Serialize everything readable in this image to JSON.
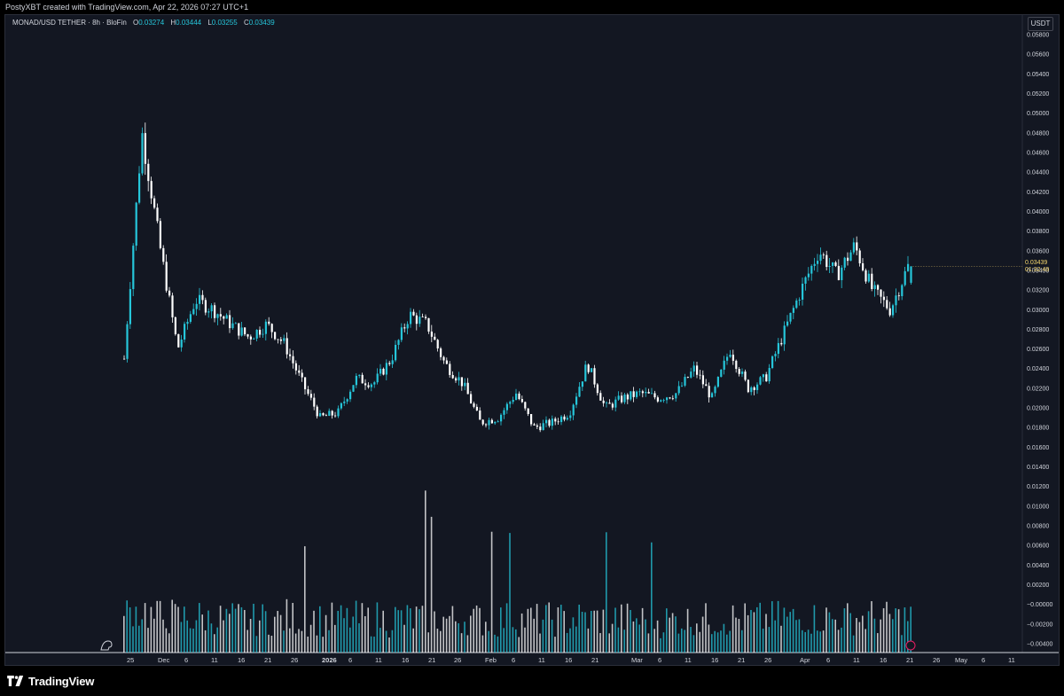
{
  "header": {
    "attribution": "PostyXBT created with TradingView.com, Apr 22, 2026 07:27 UTC+1"
  },
  "legend": {
    "symbol": "MONAD/USD TETHER · 8h · BloFin",
    "o_label": "O",
    "o_value": "0.03274",
    "h_label": "H",
    "h_value": "0.03444",
    "l_label": "L",
    "l_value": "0.03255",
    "c_label": "C",
    "c_value": "0.03439"
  },
  "currency": "USDT",
  "last_price": {
    "value": "0.03439",
    "countdown": "01:32:49"
  },
  "brand": {
    "name": "TradingView"
  },
  "colors": {
    "background": "#131722",
    "up": "#26c6da",
    "down": "#ffffff",
    "axis_text": "#d1d4dc",
    "last_price": "#f5d76e"
  },
  "chart_data": {
    "type": "candlestick",
    "symbol": "MONAD/USD TETHER",
    "interval": "8h",
    "exchange": "BloFin",
    "price_axis": {
      "ticks": [
        "0.05800",
        "0.05600",
        "0.05400",
        "0.05200",
        "0.05000",
        "0.04800",
        "0.04600",
        "0.04400",
        "0.04200",
        "0.04000",
        "0.03800",
        "0.03600",
        "0.03400",
        "0.03200",
        "0.03000",
        "0.02800",
        "0.02600",
        "0.02400",
        "0.02200",
        "0.02000",
        "0.01800",
        "0.01600",
        "0.01400",
        "0.01200",
        "0.01000",
        "0.00800",
        "0.00600",
        "0.00400",
        "0.00200",
        "−0.00000",
        "−0.00200",
        "−0.00400"
      ],
      "range": [
        -0.0048,
        0.0592
      ]
    },
    "time_axis": {
      "ticks": [
        "25",
        "Dec",
        "6",
        "11",
        "16",
        "21",
        "26",
        "2026",
        "6",
        "11",
        "16",
        "21",
        "26",
        "Feb",
        "6",
        "11",
        "16",
        "21",
        "Mar",
        "6",
        "11",
        "16",
        "21",
        "26",
        "Apr",
        "6",
        "11",
        "16",
        "21",
        "26",
        "May",
        "6",
        "11"
      ],
      "bold": [
        "2026"
      ]
    },
    "volume": {
      "shown": true,
      "color_up": "#26c6da",
      "color_down": "#ffffff"
    },
    "price_path": [
      {
        "date": "Nov 24",
        "price": 0.025
      },
      {
        "date": "Nov 25",
        "price": 0.048
      },
      {
        "date": "Nov 26",
        "price": 0.0365
      },
      {
        "date": "Nov 27",
        "price": 0.026
      },
      {
        "date": "Nov 28",
        "price": 0.031
      },
      {
        "date": "Nov 30",
        "price": 0.03
      },
      {
        "date": "Dec 3",
        "price": 0.0285
      },
      {
        "date": "Dec 6",
        "price": 0.0272
      },
      {
        "date": "Dec 9",
        "price": 0.0285
      },
      {
        "date": "Dec 12",
        "price": 0.0265
      },
      {
        "date": "Dec 15",
        "price": 0.0225
      },
      {
        "date": "Dec 18",
        "price": 0.019
      },
      {
        "date": "Dec 21",
        "price": 0.0195
      },
      {
        "date": "Dec 24",
        "price": 0.023
      },
      {
        "date": "Dec 27",
        "price": 0.0225
      },
      {
        "date": "Dec 29",
        "price": 0.025
      },
      {
        "date": "Jan 2",
        "price": 0.0295
      },
      {
        "date": "Jan 6",
        "price": 0.0285
      },
      {
        "date": "Jan 10",
        "price": 0.0245
      },
      {
        "date": "Jan 15",
        "price": 0.0225
      },
      {
        "date": "Jan 20",
        "price": 0.0185
      },
      {
        "date": "Jan 25",
        "price": 0.019
      },
      {
        "date": "Jan 29",
        "price": 0.0215
      },
      {
        "date": "Feb 2",
        "price": 0.018
      },
      {
        "date": "Feb 7",
        "price": 0.0185
      },
      {
        "date": "Feb 12",
        "price": 0.0195
      },
      {
        "date": "Feb 17",
        "price": 0.0245
      },
      {
        "date": "Feb 22",
        "price": 0.02
      },
      {
        "date": "Feb 27",
        "price": 0.021
      },
      {
        "date": "Mar 5",
        "price": 0.0215
      },
      {
        "date": "Mar 10",
        "price": 0.021
      },
      {
        "date": "Mar 15",
        "price": 0.0215
      },
      {
        "date": "Mar 19",
        "price": 0.024
      },
      {
        "date": "Mar 24",
        "price": 0.021
      },
      {
        "date": "Mar 27",
        "price": 0.026
      },
      {
        "date": "Mar 30",
        "price": 0.022
      },
      {
        "date": "Apr 3",
        "price": 0.023
      },
      {
        "date": "Apr 6",
        "price": 0.0275
      },
      {
        "date": "Apr 9",
        "price": 0.032
      },
      {
        "date": "Apr 11",
        "price": 0.036
      },
      {
        "date": "Apr 14",
        "price": 0.0335
      },
      {
        "date": "Apr 17",
        "price": 0.0365
      },
      {
        "date": "Apr 19",
        "price": 0.032
      },
      {
        "date": "Apr 20",
        "price": 0.03
      },
      {
        "date": "Apr 22",
        "price": 0.0344
      }
    ],
    "last": {
      "open": 0.03274,
      "high": 0.03444,
      "low": 0.03255,
      "close": 0.03439
    }
  }
}
